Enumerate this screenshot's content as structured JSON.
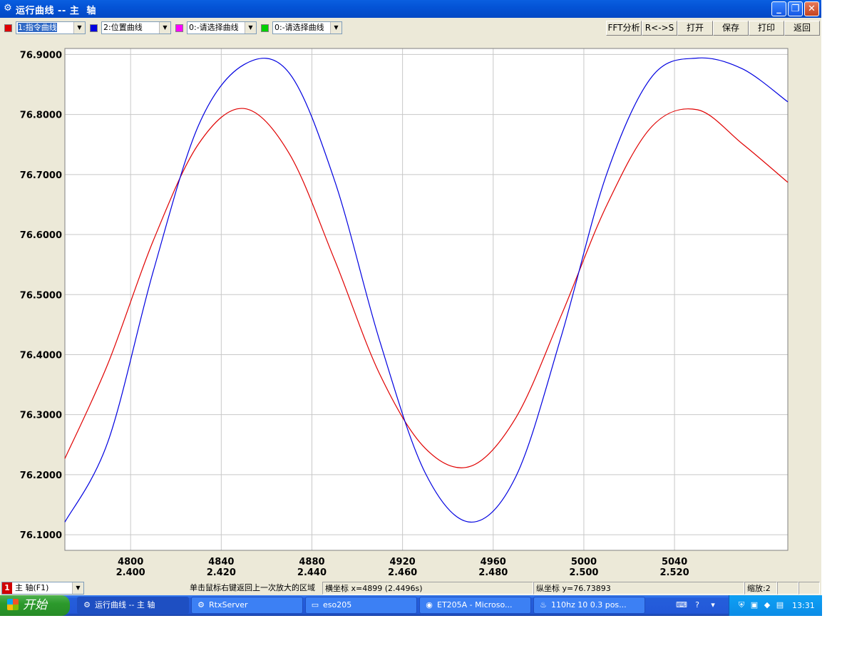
{
  "window": {
    "title": "运行曲线 -- 主  轴",
    "app_icon": "gear-icon",
    "controls": {
      "minimize": "_",
      "restore": "❐",
      "close": "✕"
    }
  },
  "toolbar": {
    "curves": [
      {
        "color": "#e00000",
        "value": "1:指令曲线",
        "selected": true
      },
      {
        "color": "#0000e0",
        "value": "2:位置曲线",
        "selected": false
      },
      {
        "color": "#ff00ff",
        "value": "0:-请选择曲线",
        "selected": false
      },
      {
        "color": "#00d000",
        "value": "0:-请选择曲线",
        "selected": false
      }
    ],
    "buttons": {
      "fft": "FFT分析",
      "rs": "R<->S",
      "open": "打开",
      "save": "保存",
      "print": "打印",
      "back": "返回"
    }
  },
  "chart_data": {
    "type": "line",
    "x": [
      4771,
      4790,
      4810,
      4830,
      4850,
      4870,
      4890,
      4910,
      4930,
      4950,
      4970,
      4990,
      5010,
      5030,
      5050,
      5070,
      5090
    ],
    "x_ticks": [
      4800,
      4840,
      4880,
      4920,
      4960,
      5000,
      5040
    ],
    "x_tick_seconds": [
      "2.400",
      "2.420",
      "2.440",
      "2.460",
      "2.480",
      "2.500",
      "2.520"
    ],
    "y_ticks": [
      "76.9000",
      "76.8000",
      "76.7000",
      "76.6000",
      "76.5000",
      "76.4000",
      "76.3000",
      "76.2000",
      "76.1000"
    ],
    "xlim": [
      4771,
      5090
    ],
    "ylim": [
      76.074,
      76.91
    ],
    "grid": true,
    "series": [
      {
        "color": "#e00000",
        "values": [
          76.227,
          76.385,
          76.59,
          76.751,
          76.81,
          76.735,
          76.558,
          76.367,
          76.244,
          76.214,
          76.295,
          76.465,
          76.648,
          76.78,
          76.808,
          76.751,
          76.687
        ]
      },
      {
        "color": "#0000e0",
        "values": [
          76.121,
          76.255,
          76.539,
          76.782,
          76.883,
          76.869,
          76.69,
          76.422,
          76.203,
          76.121,
          76.197,
          76.43,
          76.7,
          76.863,
          76.894,
          76.876,
          76.821
        ]
      }
    ]
  },
  "statusbar": {
    "axis_badge": "1",
    "axis_value": "主  轴(F1)",
    "hint": "单击鼠标右键返回上一次放大的区域",
    "x_coord": "横坐标 x=4899 (2.4496s)",
    "y_coord": "纵坐标 y=76.73893",
    "zoom": "缩放:2"
  },
  "taskbar": {
    "start": "开始",
    "tasks": [
      {
        "label": "运行曲线 -- 主  轴",
        "icon": "gear-icon",
        "glyph": "⚙",
        "active": true
      },
      {
        "label": "RtxServer",
        "icon": "server-icon",
        "glyph": "⚙",
        "active": false
      },
      {
        "label": "eso205",
        "icon": "folder-icon",
        "glyph": "▭",
        "active": false
      },
      {
        "label": "ET205A - Microso...",
        "icon": "browser-icon",
        "glyph": "◉",
        "active": false
      },
      {
        "label": "110hz 10 0.3 pos...",
        "icon": "document-icon",
        "glyph": "♨",
        "active": false
      }
    ],
    "clock": "13:31"
  }
}
